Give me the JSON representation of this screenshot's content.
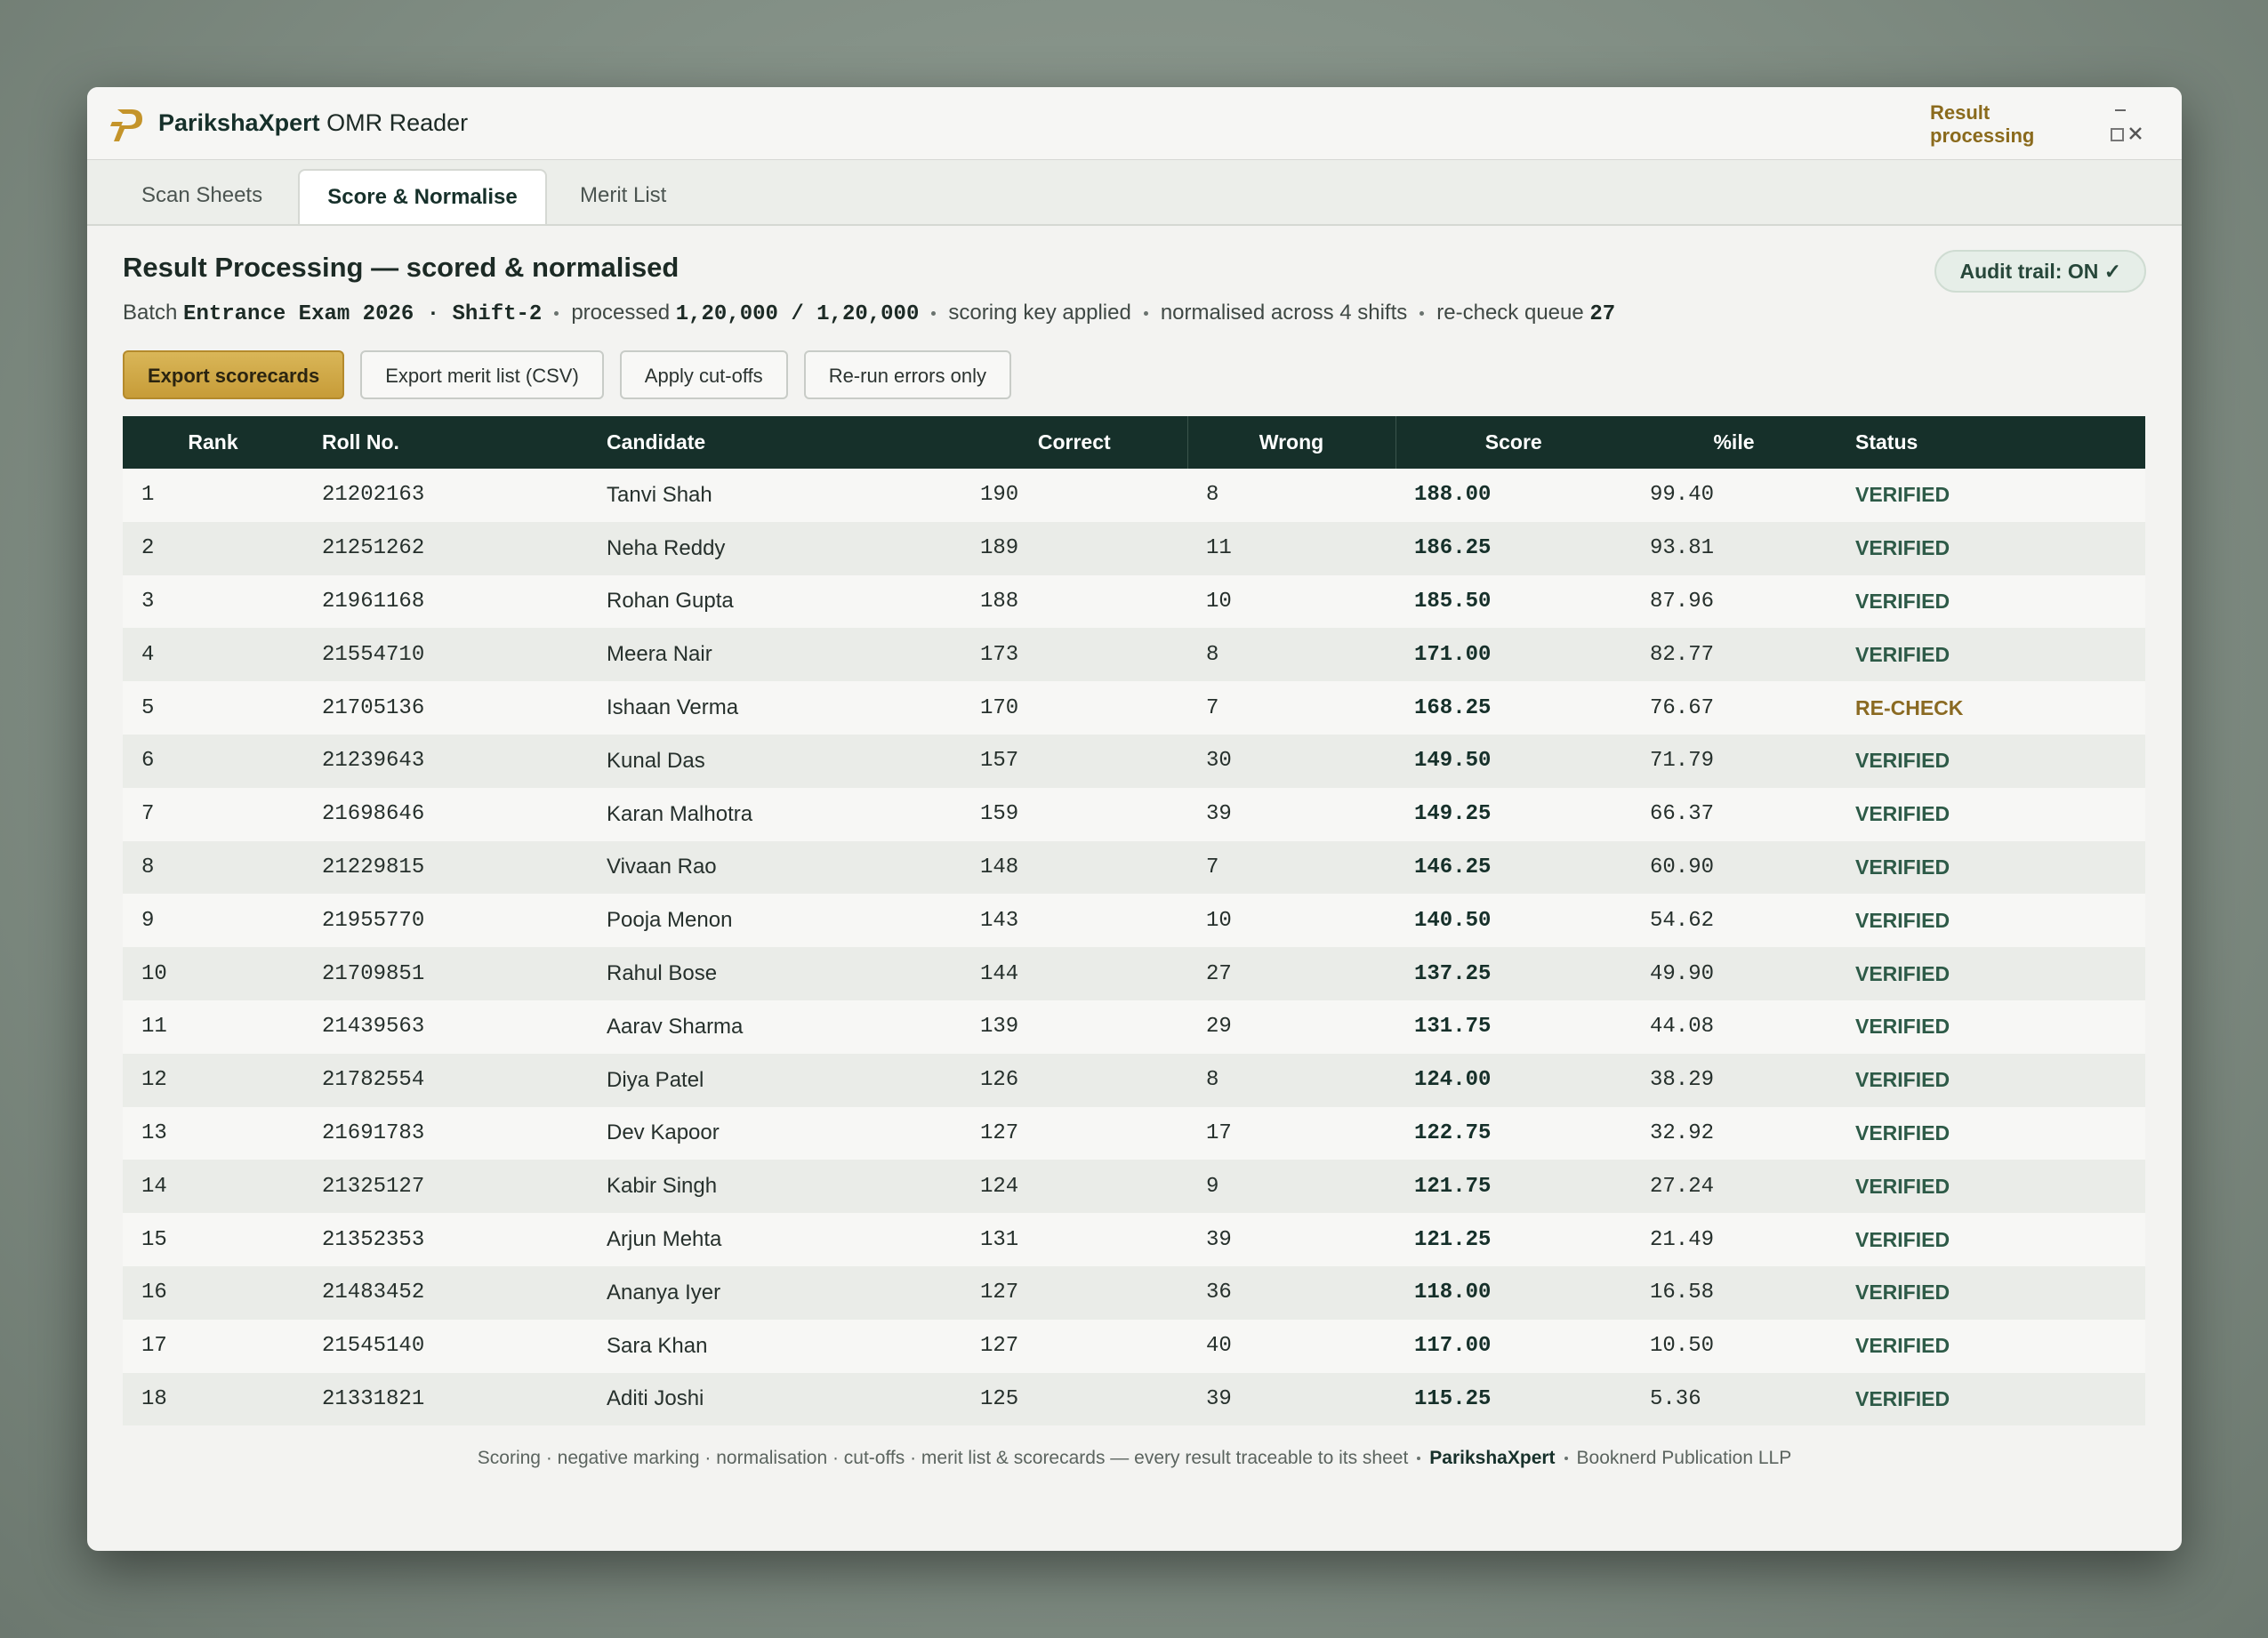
{
  "titlebar": {
    "brand": "ParikshaXpert",
    "app": "OMR Reader",
    "status": "Result processing"
  },
  "tabs": [
    "Scan Sheets",
    "Score & Normalise",
    "Merit List"
  ],
  "header": {
    "title": "Result Processing — scored & normalised",
    "audit": "Audit trail: ON ✓",
    "batch_label": "Batch",
    "batch": "Entrance Exam 2026 · Shift-2",
    "processed_label": "processed",
    "processed": "1,20,000 / 1,20,000",
    "key": "scoring key applied",
    "normalised": "normalised across 4 shifts",
    "queue_label": "re-check queue",
    "queue": "27"
  },
  "buttons": [
    "Export scorecards",
    "Export merit list (CSV)",
    "Apply cut-offs",
    "Re-run errors only"
  ],
  "table": {
    "columns": [
      "Rank",
      "Roll No.",
      "Candidate",
      "Correct",
      "Wrong",
      "Score",
      "%ile",
      "Status"
    ],
    "rows": [
      [
        "1",
        "21202163",
        "Tanvi Shah",
        "190",
        "8",
        "188.00",
        "99.40",
        "VERIFIED"
      ],
      [
        "2",
        "21251262",
        "Neha Reddy",
        "189",
        "11",
        "186.25",
        "93.81",
        "VERIFIED"
      ],
      [
        "3",
        "21961168",
        "Rohan Gupta",
        "188",
        "10",
        "185.50",
        "87.96",
        "VERIFIED"
      ],
      [
        "4",
        "21554710",
        "Meera Nair",
        "173",
        "8",
        "171.00",
        "82.77",
        "VERIFIED"
      ],
      [
        "5",
        "21705136",
        "Ishaan Verma",
        "170",
        "7",
        "168.25",
        "76.67",
        "RE-CHECK"
      ],
      [
        "6",
        "21239643",
        "Kunal Das",
        "157",
        "30",
        "149.50",
        "71.79",
        "VERIFIED"
      ],
      [
        "7",
        "21698646",
        "Karan Malhotra",
        "159",
        "39",
        "149.25",
        "66.37",
        "VERIFIED"
      ],
      [
        "8",
        "21229815",
        "Vivaan Rao",
        "148",
        "7",
        "146.25",
        "60.90",
        "VERIFIED"
      ],
      [
        "9",
        "21955770",
        "Pooja Menon",
        "143",
        "10",
        "140.50",
        "54.62",
        "VERIFIED"
      ],
      [
        "10",
        "21709851",
        "Rahul Bose",
        "144",
        "27",
        "137.25",
        "49.90",
        "VERIFIED"
      ],
      [
        "11",
        "21439563",
        "Aarav Sharma",
        "139",
        "29",
        "131.75",
        "44.08",
        "VERIFIED"
      ],
      [
        "12",
        "21782554",
        "Diya Patel",
        "126",
        "8",
        "124.00",
        "38.29",
        "VERIFIED"
      ],
      [
        "13",
        "21691783",
        "Dev Kapoor",
        "127",
        "17",
        "122.75",
        "32.92",
        "VERIFIED"
      ],
      [
        "14",
        "21325127",
        "Kabir Singh",
        "124",
        "9",
        "121.75",
        "27.24",
        "VERIFIED"
      ],
      [
        "15",
        "21352353",
        "Arjun Mehta",
        "131",
        "39",
        "121.25",
        "21.49",
        "VERIFIED"
      ],
      [
        "16",
        "21483452",
        "Ananya Iyer",
        "127",
        "36",
        "118.00",
        "16.58",
        "VERIFIED"
      ],
      [
        "17",
        "21545140",
        "Sara Khan",
        "127",
        "40",
        "117.00",
        "10.50",
        "VERIFIED"
      ],
      [
        "18",
        "21331821",
        "Aditi Joshi",
        "125",
        "39",
        "115.25",
        "5.36",
        "VERIFIED"
      ]
    ]
  },
  "footer": {
    "text": "Scoring · negative marking · normalisation · cut-offs · merit list & scorecards — every result traceable to its sheet",
    "brand": "ParikshaXpert",
    "publisher": "Booknerd Publication LLP"
  }
}
